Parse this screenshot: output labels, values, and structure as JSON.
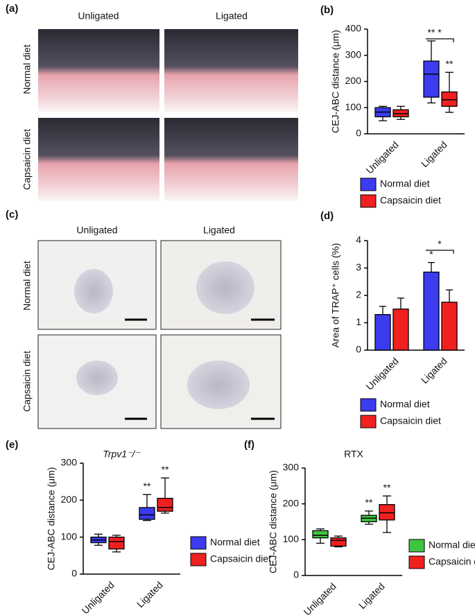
{
  "image_panels": [
    {
      "label": "(a)",
      "columns": [
        "Unligated",
        "Ligated"
      ],
      "rows": [
        "Normal diet",
        "Capsaicin diet"
      ]
    },
    {
      "label": "(c)",
      "columns": [
        "Unligated",
        "Ligated"
      ],
      "rows": [
        "Normal diet",
        "Capsaicin diet"
      ]
    }
  ],
  "chart_data": [
    {
      "type": "box",
      "panel": "(b)",
      "y_label": "CEJ-ABC distance (μm)",
      "categories": [
        "Unligated",
        "Ligated"
      ],
      "ylim": [
        0,
        400
      ],
      "yticks": [
        0,
        100,
        200,
        300,
        400
      ],
      "series": [
        {
          "name": "Normal diet",
          "color": "#3b3bf0",
          "values": [
            {
              "min": 50,
              "q1": 65,
              "median": 83,
              "q3": 100,
              "max": 105
            },
            {
              "min": 118,
              "q1": 140,
              "median": 228,
              "q3": 278,
              "max": 355
            }
          ]
        },
        {
          "name": "Capsaicin diet",
          "color": "#f02020",
          "values": [
            {
              "min": 55,
              "q1": 65,
              "median": 77,
              "q3": 92,
              "max": 105
            },
            {
              "min": 82,
              "q1": 105,
              "median": 130,
              "q3": 160,
              "max": 235
            }
          ]
        }
      ],
      "annotations": [
        {
          "text": "**",
          "category": "Ligated",
          "series": "Normal diet"
        },
        {
          "text": "**",
          "category": "Ligated",
          "series": "Capsaicin diet"
        },
        {
          "text": "*",
          "category": "Ligated"
        }
      ]
    },
    {
      "type": "bar",
      "panel": "(d)",
      "y_label": "Area of TRAP⁺ cells (%)",
      "categories": [
        "Unligated",
        "Ligated"
      ],
      "ylim": [
        0,
        4
      ],
      "yticks": [
        0,
        1,
        2,
        3,
        4
      ],
      "series": [
        {
          "name": "Normal diet",
          "color": "#3b3bf0",
          "values": [
            1.3,
            2.85
          ],
          "errors": [
            0.3,
            0.35
          ]
        },
        {
          "name": "Capsaicin diet",
          "color": "#f02020",
          "values": [
            1.5,
            1.75
          ],
          "errors": [
            0.4,
            0.45
          ]
        }
      ],
      "annotations": [
        {
          "text": "*",
          "category": "Ligated",
          "series": "Normal diet"
        },
        {
          "text": "*",
          "category": "Ligated"
        }
      ]
    },
    {
      "type": "box",
      "panel": "(e)",
      "title": "Trpv1⁻/⁻",
      "y_label": "CEJ-ABC distance (μm)",
      "categories": [
        "Unligated",
        "Ligated"
      ],
      "ylim": [
        0,
        300
      ],
      "yticks": [
        0,
        100,
        200,
        300
      ],
      "series": [
        {
          "name": "Normal diet",
          "color": "#3b3bf0",
          "values": [
            {
              "min": 78,
              "q1": 85,
              "median": 92,
              "q3": 100,
              "max": 108
            },
            {
              "min": 145,
              "q1": 148,
              "median": 160,
              "q3": 180,
              "max": 215
            }
          ]
        },
        {
          "name": "Capsaicin diet",
          "color": "#f02020",
          "values": [
            {
              "min": 60,
              "q1": 68,
              "median": 88,
              "q3": 100,
              "max": 105
            },
            {
              "min": 165,
              "q1": 170,
              "median": 180,
              "q3": 205,
              "max": 260
            }
          ]
        }
      ],
      "annotations": [
        {
          "text": "**",
          "category": "Ligated",
          "series": "Normal diet"
        },
        {
          "text": "**",
          "category": "Ligated",
          "series": "Capsaicin diet"
        }
      ]
    },
    {
      "type": "box",
      "panel": "(f)",
      "title": "RTX",
      "y_label": "CEJ-ABC distance (μm)",
      "categories": [
        "Unligated",
        "Ligated"
      ],
      "ylim": [
        0,
        300
      ],
      "yticks": [
        0,
        100,
        200,
        300
      ],
      "series": [
        {
          "name": "Normal diet",
          "color": "#3fc43f",
          "values": [
            {
              "min": 90,
              "q1": 105,
              "median": 112,
              "q3": 125,
              "max": 130
            },
            {
              "min": 143,
              "q1": 150,
              "median": 160,
              "q3": 168,
              "max": 180
            }
          ]
        },
        {
          "name": "Capsaicin diet",
          "color": "#f02020",
          "values": [
            {
              "min": 80,
              "q1": 82,
              "median": 98,
              "q3": 105,
              "max": 110
            },
            {
              "min": 120,
              "q1": 155,
              "median": 175,
              "q3": 198,
              "max": 222
            }
          ]
        }
      ],
      "annotations": [
        {
          "text": "**",
          "category": "Ligated",
          "series": "Normal diet"
        },
        {
          "text": "**",
          "category": "Ligated",
          "series": "Capsaicin diet"
        }
      ]
    }
  ]
}
